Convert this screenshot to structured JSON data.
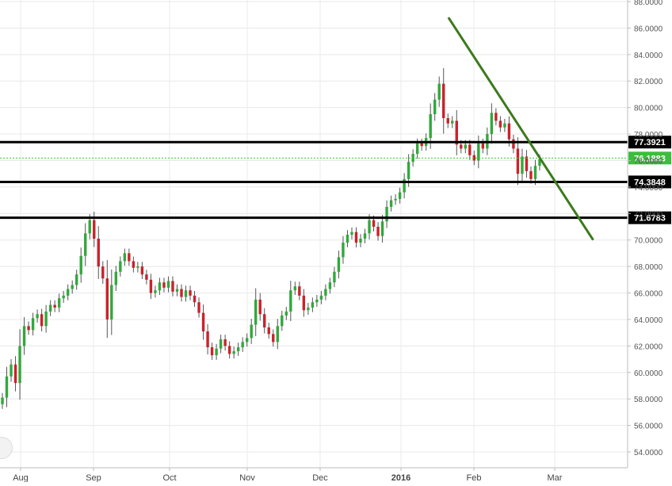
{
  "chart_data": {
    "type": "candlestick",
    "title": "",
    "xlabel": "",
    "ylabel": "",
    "ylim": [
      53.0,
      88.0
    ],
    "y_ticks": [
      54,
      56,
      58,
      60,
      62,
      64,
      66,
      68,
      70,
      72,
      74,
      76,
      78,
      80,
      82,
      84,
      86,
      88
    ],
    "y_tick_labels": [
      "54.0000",
      "56.0000",
      "58.0000",
      "60.0000",
      "62.0000",
      "64.0000",
      "66.0000",
      "68.0000",
      "70.0000",
      "72.0000",
      "74.0000",
      "76.0000",
      "78.0000",
      "80.0000",
      "82.0000",
      "84.0000",
      "86.0000",
      "88.0000"
    ],
    "x_tick_labels": [
      "Aug",
      "Sep",
      "Oct",
      "Nov",
      "Dec",
      "2016",
      "Feb",
      "Mar"
    ],
    "grid": true,
    "colors": {
      "up": "#32a83c",
      "down": "#c8232c",
      "trendline": "#3c7a1c",
      "level_line": "#000000",
      "current_line": "#33cc33"
    },
    "closes": [
      58.1,
      59.7,
      60.6,
      59.2,
      62.0,
      63.5,
      63.2,
      64.1,
      64.4,
      63.5,
      64.6,
      65.1,
      64.9,
      65.6,
      65.8,
      66.3,
      66.6,
      67.4,
      68.8,
      70.5,
      71.5,
      70.1,
      68.0,
      67.1,
      64.0,
      66.6,
      67.6,
      68.4,
      69.0,
      68.4,
      67.9,
      68.0,
      67.4,
      67.0,
      66.0,
      66.2,
      66.8,
      66.4,
      66.9,
      66.1,
      66.3,
      65.7,
      66.2,
      65.8,
      65.3,
      64.5,
      63.1,
      61.9,
      61.3,
      61.8,
      62.5,
      62.0,
      61.4,
      61.6,
      61.9,
      62.3,
      62.6,
      63.6,
      65.5,
      64.4,
      63.4,
      62.9,
      62.3,
      63.5,
      64.3,
      64.6,
      66.2,
      66.5,
      65.8,
      64.7,
      64.9,
      65.3,
      65.5,
      65.8,
      66.3,
      66.8,
      67.6,
      68.7,
      69.8,
      70.4,
      70.6,
      69.8,
      70.1,
      70.5,
      71.5,
      71.0,
      70.3,
      71.4,
      72.5,
      73.0,
      73.1,
      73.6,
      74.6,
      75.9,
      76.5,
      77.3,
      77.1,
      77.7,
      79.5,
      80.6,
      81.8,
      79.2,
      78.8,
      79.0,
      77.2,
      76.9,
      77.2,
      76.4,
      76.0,
      77.3,
      76.9,
      78.0,
      79.6,
      79.0,
      78.5,
      78.8,
      77.6,
      76.9,
      75.0,
      76.3,
      75.2,
      74.6,
      75.6,
      76.1
    ],
    "levels": [
      {
        "label": "77.3921",
        "value": 77.3921
      },
      {
        "label": "76.1883",
        "value": 76.1883
      },
      {
        "label": "74.3848",
        "value": 74.3848
      },
      {
        "label": "71.6783",
        "value": 71.6783
      }
    ],
    "trendline": {
      "from": {
        "date": "2016-01-20",
        "price": 86.8
      },
      "to": {
        "date": "2016-03-18",
        "price": 70.0
      }
    }
  }
}
